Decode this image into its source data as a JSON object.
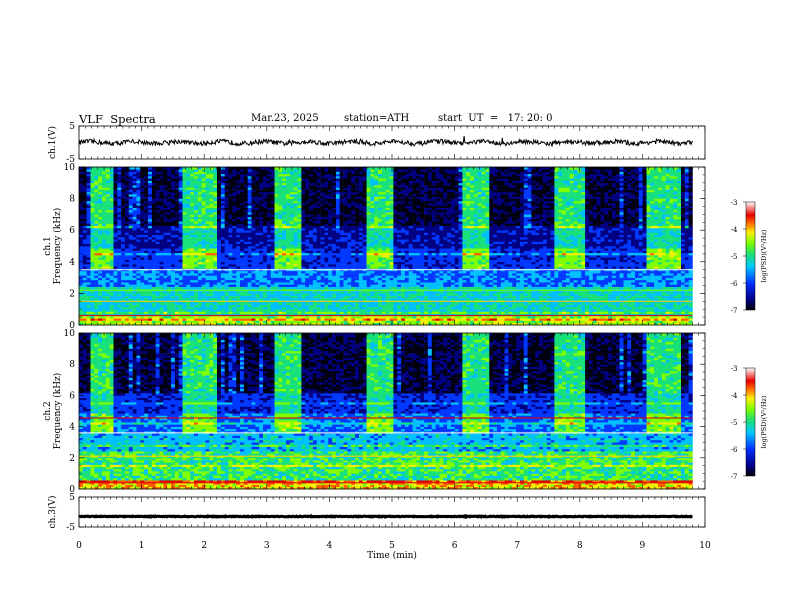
{
  "header": {
    "title": "VLF  Spectra",
    "date": "Mar.23, 2025",
    "station": "station=ATH",
    "start": "start  UT  =   17: 20: 0"
  },
  "chart_data": [
    {
      "type": "line",
      "name": "ch1-waveform",
      "ylabel": "ch.1(V)",
      "ylim": [
        -5,
        5
      ],
      "yticks": [
        "5",
        "-5"
      ],
      "xlim": [
        0,
        10
      ],
      "approx_level": 0
    },
    {
      "type": "heatmap",
      "name": "ch1-spectrogram",
      "ylabel": "ch.1\nFrequency  (kHz)",
      "ylim": [
        0,
        10
      ],
      "yticks": [
        "0",
        "2",
        "4",
        "6",
        "8",
        "10"
      ],
      "xlim": [
        0,
        10
      ],
      "colorbar": {
        "label": "log(PSD)(V²/Hz)",
        "range": [
          -7,
          -3
        ],
        "ticks": [
          "-3",
          "-4",
          "-5",
          "-6",
          "-7"
        ]
      },
      "bursts_min": [
        [
          0.18,
          0.58
        ],
        [
          1.68,
          2.23
        ],
        [
          3.13,
          3.53
        ],
        [
          4.6,
          5.0
        ],
        [
          6.1,
          6.55
        ],
        [
          7.6,
          8.07
        ],
        [
          9.05,
          9.6
        ]
      ]
    },
    {
      "type": "heatmap",
      "name": "ch2-spectrogram",
      "ylabel": "ch.2\nFrequency  (kHz)",
      "ylim": [
        0,
        10
      ],
      "yticks": [
        "0",
        "2",
        "4",
        "6",
        "8",
        "10"
      ],
      "xlim": [
        0,
        10
      ],
      "colorbar": {
        "label": "log(PSD)(V²/Hz)",
        "range": [
          -7,
          -3
        ],
        "ticks": [
          "-3",
          "-4",
          "-5",
          "-6",
          "-7"
        ]
      },
      "bursts_min": [
        [
          0.18,
          0.58
        ],
        [
          1.68,
          2.23
        ],
        [
          3.13,
          3.53
        ],
        [
          4.6,
          5.0
        ],
        [
          6.1,
          6.55
        ],
        [
          7.6,
          8.07
        ],
        [
          9.05,
          9.6
        ]
      ]
    },
    {
      "type": "line",
      "name": "ch3-waveform",
      "ylabel": "ch.3(V)",
      "ylim": [
        -5,
        5
      ],
      "yticks": [
        "5",
        "-5"
      ],
      "xlim": [
        0,
        10
      ],
      "approx_level": -1.5
    }
  ],
  "xaxis": {
    "label": "Time  (min)",
    "ticks": [
      "0",
      "1",
      "2",
      "3",
      "4",
      "5",
      "6",
      "7",
      "8",
      "9",
      "10"
    ]
  }
}
